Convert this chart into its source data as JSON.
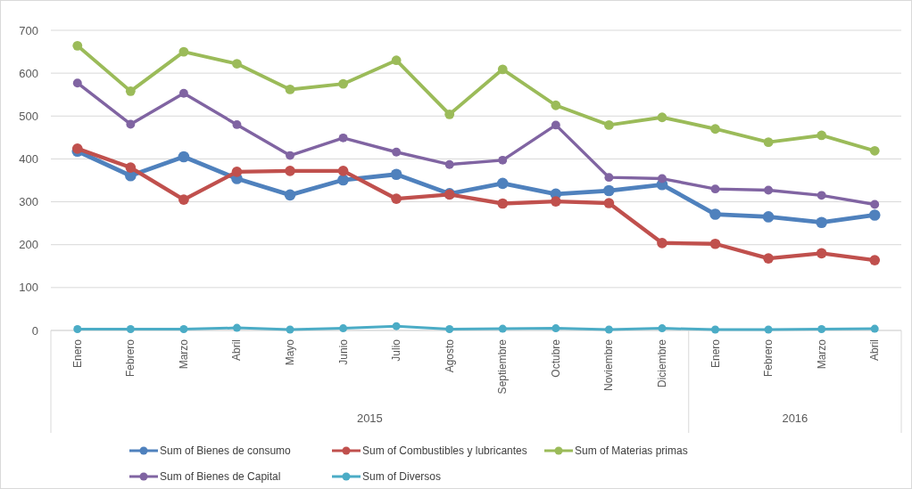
{
  "chart_data": {
    "type": "line",
    "categories": [
      "Enero",
      "Febrero",
      "Marzo",
      "Abril",
      "Mayo",
      "Junio",
      "Julio",
      "Agosto",
      "Septiembre",
      "Octubre",
      "Noviembre",
      "Diciembre",
      "Enero",
      "Febrero",
      "Marzo",
      "Abril"
    ],
    "series": [
      {
        "name": "Sum of Bienes de consumo",
        "color": "#4f81bd",
        "values": [
          418,
          361,
          405,
          354,
          316,
          351,
          364,
          319,
          343,
          318,
          326,
          340,
          271,
          265,
          252,
          269
        ]
      },
      {
        "name": "Sum of Combustibles y lubricantes",
        "color": "#c0504d",
        "values": [
          424,
          380,
          305,
          370,
          372,
          372,
          307,
          317,
          296,
          301,
          297,
          204,
          202,
          168,
          180,
          164
        ]
      },
      {
        "name": "Sum of Materias primas",
        "color": "#9bbb59",
        "values": [
          664,
          558,
          650,
          622,
          562,
          575,
          630,
          504,
          609,
          525,
          479,
          497,
          470,
          439,
          455,
          419
        ]
      },
      {
        "name": "Sum of Bienes de Capital",
        "color": "#8064a2",
        "values": [
          577,
          481,
          553,
          480,
          408,
          449,
          416,
          387,
          397,
          479,
          357,
          354,
          330,
          327,
          315,
          294
        ]
      },
      {
        "name": "Sum of Diversos",
        "color": "#4bacc6",
        "values": [
          3,
          3,
          3,
          6,
          2,
          5,
          10,
          3,
          4,
          5,
          2,
          5,
          2,
          2,
          3,
          4
        ]
      }
    ],
    "annotations": [
      "2015",
      "2016"
    ],
    "ylim": [
      0,
      700
    ],
    "yticks": [
      0,
      100,
      200,
      300,
      400,
      500,
      600,
      700
    ],
    "grid": "y",
    "legend": "bottom",
    "marker": "circle",
    "line_style": "solid"
  }
}
